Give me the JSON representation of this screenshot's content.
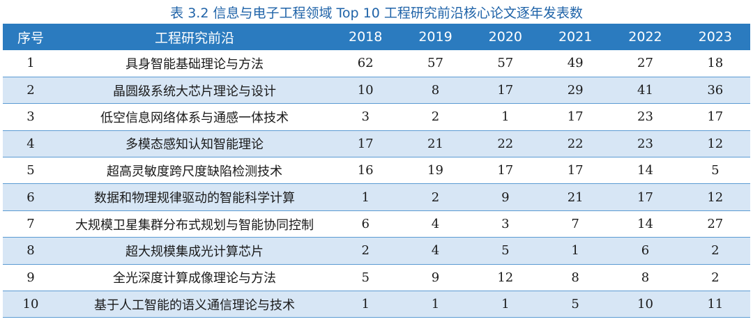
{
  "caption": "表 3.2    信息与电子工程领域 Top 10 工程研究前沿核心论文逐年发表数",
  "headers": [
    "序号",
    "工程研究前沿",
    "2018",
    "2019",
    "2020",
    "2021",
    "2022",
    "2023"
  ],
  "rows": [
    {
      "no": "1",
      "topic": "具身智能基础理论与方法",
      "values": [
        "62",
        "57",
        "57",
        "49",
        "27",
        "18"
      ]
    },
    {
      "no": "2",
      "topic": "晶圆级系统大芯片理论与设计",
      "values": [
        "10",
        "8",
        "17",
        "29",
        "41",
        "36"
      ]
    },
    {
      "no": "3",
      "topic": "低空信息网络体系与通感一体技术",
      "values": [
        "3",
        "2",
        "1",
        "17",
        "23",
        "17"
      ]
    },
    {
      "no": "4",
      "topic": "多模态感知认知智能理论",
      "values": [
        "17",
        "21",
        "22",
        "22",
        "23",
        "12"
      ]
    },
    {
      "no": "5",
      "topic": "超高灵敏度跨尺度缺陷检测技术",
      "values": [
        "16",
        "19",
        "17",
        "17",
        "14",
        "5"
      ]
    },
    {
      "no": "6",
      "topic": "数据和物理规律驱动的智能科学计算",
      "values": [
        "1",
        "2",
        "9",
        "21",
        "17",
        "12"
      ]
    },
    {
      "no": "7",
      "topic": "大规模卫星集群分布式规划与智能协同控制",
      "values": [
        "6",
        "4",
        "3",
        "7",
        "14",
        "27"
      ]
    },
    {
      "no": "8",
      "topic": "超大规模集成光计算芯片",
      "values": [
        "2",
        "4",
        "5",
        "1",
        "6",
        "2"
      ]
    },
    {
      "no": "9",
      "topic": "全光深度计算成像理论与方法",
      "values": [
        "5",
        "9",
        "12",
        "8",
        "8",
        "2"
      ]
    },
    {
      "no": "10",
      "topic": "基于人工智能的语义通信理论与技术",
      "values": [
        "1",
        "1",
        "1",
        "5",
        "10",
        "11"
      ]
    }
  ]
}
